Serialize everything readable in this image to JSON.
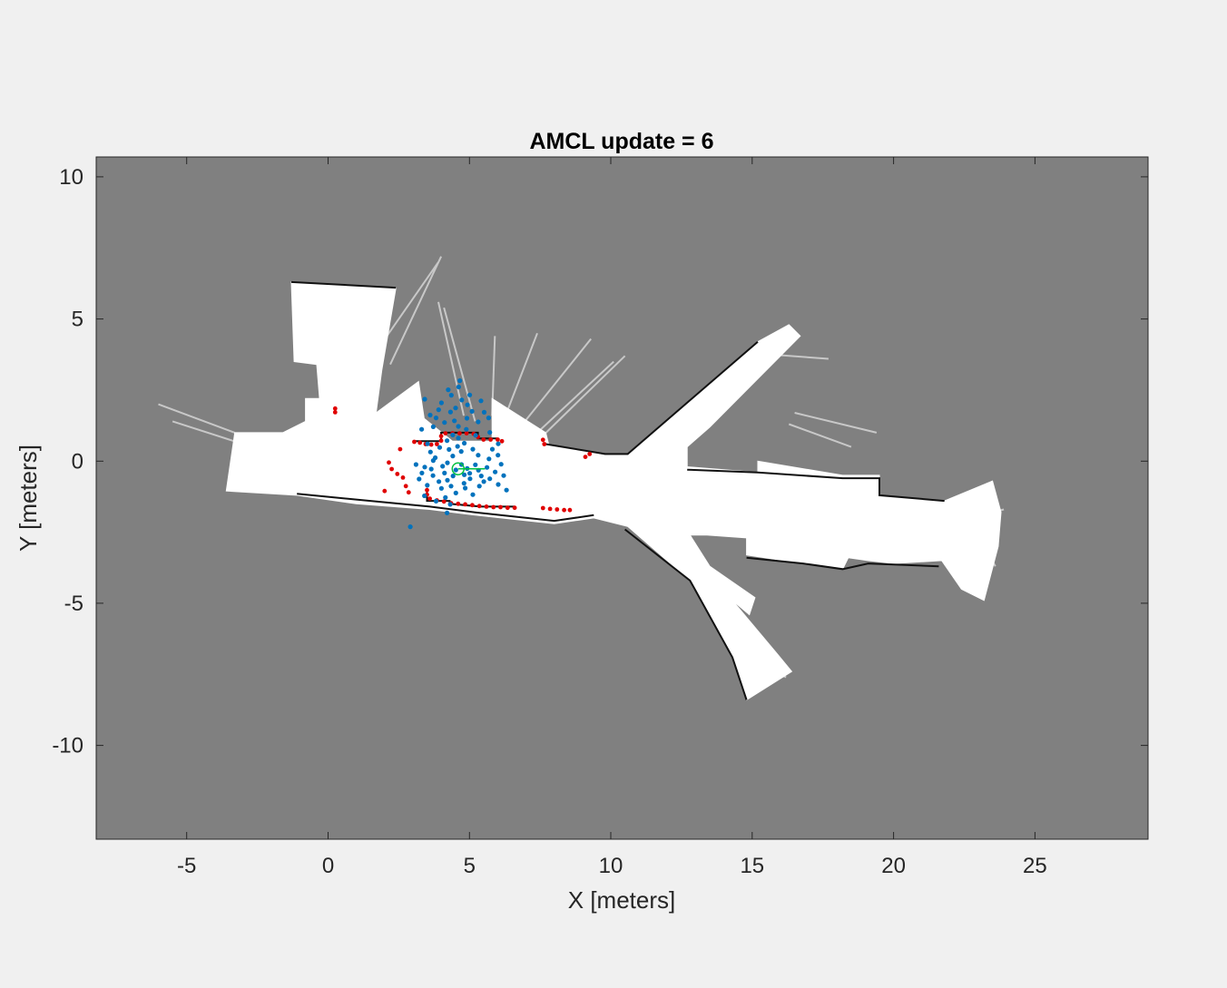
{
  "chart_data": {
    "type": "scatter",
    "title": "AMCL update = 6",
    "xlabel": "X [meters]",
    "ylabel": "Y [meters]",
    "xlim": [
      -8.2,
      29.0
    ],
    "ylim": [
      -13.3,
      10.7
    ],
    "xticks": [
      -5,
      0,
      5,
      10,
      15,
      20,
      25
    ],
    "yticks": [
      10,
      5,
      0,
      -5,
      -10
    ],
    "xtick_labels": [
      "-5",
      "0",
      "5",
      "10",
      "15",
      "20",
      "25"
    ],
    "ytick_labels": [
      "10",
      "5",
      "0",
      "-5",
      "-10"
    ],
    "grid": false,
    "legend": "none",
    "background": "occupancy-grid-map",
    "colors": {
      "unknown": "#808080",
      "free": "#ffffff",
      "occupied": "#111111",
      "particles": "#0072bd",
      "scan": "#e00000",
      "pose": "#00c040",
      "figure": "#f0f0f0"
    },
    "map_free_space": [
      [
        [
          -3.6,
          -1.05
        ],
        [
          -3.3,
          1.0
        ],
        [
          -1.6,
          1.0
        ],
        [
          -0.8,
          1.4
        ],
        [
          -0.8,
          2.2
        ],
        [
          -0.3,
          2.2
        ],
        [
          -0.4,
          3.4
        ],
        [
          -1.2,
          3.5
        ],
        [
          -1.3,
          6.3
        ],
        [
          2.4,
          6.1
        ],
        [
          1.9,
          3.2
        ],
        [
          1.7,
          1.7
        ],
        [
          3.2,
          2.8
        ],
        [
          3.4,
          1.5
        ],
        [
          4.4,
          0.7
        ],
        [
          5.8,
          0.7
        ],
        [
          5.8,
          2.2
        ],
        [
          7.7,
          1.0
        ],
        [
          7.8,
          0.6
        ],
        [
          9.8,
          0.2
        ],
        [
          10.6,
          0.2
        ],
        [
          15.2,
          4.2
        ],
        [
          16.3,
          4.8
        ],
        [
          16.7,
          4.4
        ],
        [
          13.5,
          1.2
        ],
        [
          12.7,
          0.5
        ],
        [
          12.7,
          -0.2
        ],
        [
          15.2,
          -0.4
        ],
        [
          15.2,
          0.0
        ],
        [
          18.2,
          -0.5
        ],
        [
          19.5,
          -0.5
        ],
        [
          19.5,
          -1.2
        ],
        [
          21.8,
          -1.4
        ],
        [
          23.5,
          -0.7
        ],
        [
          23.8,
          -1.8
        ],
        [
          23.7,
          -3.0
        ],
        [
          23.2,
          -4.9
        ],
        [
          22.4,
          -4.5
        ],
        [
          21.7,
          -3.5
        ],
        [
          20.0,
          -3.6
        ],
        [
          19.1,
          -3.5
        ],
        [
          18.4,
          -3.4
        ],
        [
          18.2,
          -3.8
        ],
        [
          16.8,
          -3.6
        ],
        [
          14.8,
          -3.3
        ],
        [
          14.8,
          -2.7
        ],
        [
          13.4,
          -2.6
        ],
        [
          12.8,
          -2.6
        ],
        [
          13.5,
          -3.7
        ],
        [
          15.1,
          -4.8
        ],
        [
          14.9,
          -5.4
        ],
        [
          14.3,
          -4.9
        ],
        [
          15.9,
          -6.8
        ],
        [
          16.4,
          -7.4
        ],
        [
          14.8,
          -8.4
        ],
        [
          14.3,
          -6.9
        ],
        [
          12.8,
          -4.2
        ],
        [
          10.6,
          -2.3
        ],
        [
          9.4,
          -2.0
        ],
        [
          8.0,
          -2.2
        ],
        [
          5.2,
          -1.9
        ],
        [
          3.6,
          -1.7
        ],
        [
          1.0,
          -1.5
        ],
        [
          -1.1,
          -1.2
        ],
        [
          -3.6,
          -1.05
        ]
      ]
    ],
    "map_walls": [
      [
        [
          3.0,
          0.7
        ],
        [
          4.0,
          0.7
        ],
        [
          4.0,
          1.0
        ],
        [
          5.3,
          1.0
        ],
        [
          5.3,
          0.8
        ],
        [
          6.0,
          0.8
        ]
      ],
      [
        [
          3.5,
          -1.0
        ],
        [
          3.5,
          -1.4
        ],
        [
          4.3,
          -1.4
        ],
        [
          4.3,
          -1.5
        ],
        [
          5.4,
          -1.6
        ],
        [
          6.6,
          -1.6
        ]
      ],
      [
        [
          -1.1,
          -1.15
        ],
        [
          1.0,
          -1.35
        ],
        [
          3.6,
          -1.6
        ],
        [
          5.2,
          -1.8
        ],
        [
          8.0,
          -2.1
        ],
        [
          9.4,
          -1.9
        ]
      ],
      [
        [
          12.7,
          -0.3
        ],
        [
          15.2,
          -0.4
        ],
        [
          18.2,
          -0.6
        ],
        [
          19.5,
          -0.6
        ],
        [
          19.5,
          -1.2
        ],
        [
          21.8,
          -1.4
        ]
      ],
      [
        [
          14.8,
          -3.4
        ],
        [
          16.8,
          -3.6
        ],
        [
          18.2,
          -3.8
        ],
        [
          19.1,
          -3.6
        ],
        [
          21.6,
          -3.7
        ]
      ],
      [
        [
          7.7,
          0.6
        ],
        [
          9.8,
          0.25
        ],
        [
          10.6,
          0.25
        ],
        [
          15.2,
          4.2
        ]
      ],
      [
        [
          10.5,
          -2.4
        ],
        [
          12.8,
          -4.2
        ],
        [
          14.3,
          -6.9
        ],
        [
          14.8,
          -8.4
        ]
      ],
      [
        [
          -1.3,
          6.3
        ],
        [
          2.4,
          6.1
        ]
      ]
    ],
    "map_rays": [
      [
        [
          -3.3,
          1.0
        ],
        [
          -6.0,
          2.0
        ]
      ],
      [
        [
          -3.0,
          0.6
        ],
        [
          -5.5,
          1.4
        ]
      ],
      [
        [
          1.8,
          4.0
        ],
        [
          3.9,
          7.0
        ]
      ],
      [
        [
          2.2,
          3.4
        ],
        [
          4.0,
          7.2
        ]
      ],
      [
        [
          4.8,
          1.6
        ],
        [
          3.9,
          5.6
        ]
      ],
      [
        [
          5.2,
          1.4
        ],
        [
          4.1,
          5.4
        ]
      ],
      [
        [
          5.8,
          1.6
        ],
        [
          5.9,
          4.4
        ]
      ],
      [
        [
          6.2,
          1.4
        ],
        [
          7.4,
          4.5
        ]
      ],
      [
        [
          6.8,
          1.2
        ],
        [
          9.3,
          4.3
        ]
      ],
      [
        [
          7.4,
          1.0
        ],
        [
          10.1,
          3.5
        ]
      ],
      [
        [
          7.6,
          0.9
        ],
        [
          10.5,
          3.7
        ]
      ],
      [
        [
          15.0,
          3.8
        ],
        [
          17.7,
          3.6
        ]
      ],
      [
        [
          15.0,
          3.2
        ],
        [
          16.3,
          4.7
        ]
      ],
      [
        [
          16.5,
          1.7
        ],
        [
          19.4,
          1.0
        ]
      ],
      [
        [
          16.3,
          1.3
        ],
        [
          18.5,
          0.5
        ]
      ],
      [
        [
          22.8,
          -2.0
        ],
        [
          23.9,
          -1.7
        ]
      ],
      [
        [
          22.7,
          -2.2
        ],
        [
          23.6,
          -3.7
        ]
      ],
      [
        [
          14.8,
          -7.0
        ],
        [
          16.2,
          -7.6
        ]
      ]
    ],
    "particles": [
      {
        "x": 4.51,
        "y": 1.87
      },
      {
        "x": 4.62,
        "y": 2.61
      },
      {
        "x": 4.47,
        "y": 1.42
      },
      {
        "x": 5.09,
        "y": 1.75
      },
      {
        "x": 4.73,
        "y": 2.15
      },
      {
        "x": 4.12,
        "y": 1.36
      },
      {
        "x": 4.41,
        "y": 0.92
      },
      {
        "x": 4.89,
        "y": 1.12
      },
      {
        "x": 3.61,
        "y": 1.62
      },
      {
        "x": 5.31,
        "y": 1.38
      },
      {
        "x": 4.66,
        "y": 2.83
      },
      {
        "x": 4.36,
        "y": 2.32
      },
      {
        "x": 3.42,
        "y": 2.18
      },
      {
        "x": 5.68,
        "y": 1.52
      },
      {
        "x": 4.28,
        "y": 0.41
      },
      {
        "x": 4.82,
        "y": 0.63
      },
      {
        "x": 5.31,
        "y": 0.21
      },
      {
        "x": 3.79,
        "y": 0.12
      },
      {
        "x": 4.05,
        "y": -0.18
      },
      {
        "x": 4.52,
        "y": -0.31
      },
      {
        "x": 5.01,
        "y": -0.43
      },
      {
        "x": 5.42,
        "y": -0.52
      },
      {
        "x": 5.91,
        "y": -0.38
      },
      {
        "x": 3.42,
        "y": -0.21
      },
      {
        "x": 3.71,
        "y": -0.51
      },
      {
        "x": 4.22,
        "y": -0.67
      },
      {
        "x": 4.81,
        "y": -0.78
      },
      {
        "x": 5.21,
        "y": -0.13
      },
      {
        "x": 5.69,
        "y": 0.08
      },
      {
        "x": 6.12,
        "y": -0.11
      },
      {
        "x": 6.21,
        "y": -0.51
      },
      {
        "x": 3.51,
        "y": -0.85
      },
      {
        "x": 4.01,
        "y": -0.96
      },
      {
        "x": 4.52,
        "y": -1.12
      },
      {
        "x": 5.12,
        "y": -1.18
      },
      {
        "x": 3.82,
        "y": -1.41
      },
      {
        "x": 4.32,
        "y": -1.52
      },
      {
        "x": 3.11,
        "y": -0.12
      },
      {
        "x": 3.22,
        "y": -0.63
      },
      {
        "x": 4.92,
        "y": -0.26
      },
      {
        "x": 4.41,
        "y": 0.18
      },
      {
        "x": 4.71,
        "y": 0.34
      },
      {
        "x": 5.51,
        "y": -0.72
      },
      {
        "x": 3.62,
        "y": 0.32
      },
      {
        "x": 4.21,
        "y": 0.72
      },
      {
        "x": 5.81,
        "y": 0.42
      },
      {
        "x": 6.01,
        "y": 0.21
      },
      {
        "x": 3.31,
        "y": 1.12
      },
      {
        "x": 3.72,
        "y": 1.21
      },
      {
        "x": 5.01,
        "y": 2.33
      },
      {
        "x": 4.91,
        "y": 1.51
      },
      {
        "x": 4.33,
        "y": 1.73
      },
      {
        "x": 4.01,
        "y": 2.05
      },
      {
        "x": 5.41,
        "y": 2.12
      },
      {
        "x": 3.91,
        "y": 1.81
      },
      {
        "x": 4.61,
        "y": 0.81
      },
      {
        "x": 5.22,
        "y": 0.91
      },
      {
        "x": 3.52,
        "y": 0.61
      },
      {
        "x": 6.02,
        "y": 0.61
      },
      {
        "x": 5.72,
        "y": 1.01
      },
      {
        "x": 4.12,
        "y": -0.42
      },
      {
        "x": 4.42,
        "y": -0.52
      },
      {
        "x": 4.72,
        "y": -0.12
      },
      {
        "x": 5.32,
        "y": -0.32
      },
      {
        "x": 3.92,
        "y": -0.72
      },
      {
        "x": 5.02,
        "y": -0.62
      },
      {
        "x": 5.62,
        "y": -0.22
      },
      {
        "x": 3.32,
        "y": -0.42
      },
      {
        "x": 6.02,
        "y": -0.82
      },
      {
        "x": 4.22,
        "y": -0.06
      },
      {
        "x": 3.72,
        "y": 0.02
      },
      {
        "x": 4.82,
        "y": -0.48
      },
      {
        "x": 5.72,
        "y": -0.62
      },
      {
        "x": 2.91,
        "y": -2.31
      },
      {
        "x": 4.21,
        "y": -1.82
      },
      {
        "x": 3.41,
        "y": -1.22
      },
      {
        "x": 6.31,
        "y": -1.02
      },
      {
        "x": 4.61,
        "y": 1.22
      },
      {
        "x": 5.52,
        "y": 1.72
      },
      {
        "x": 3.82,
        "y": 1.52
      },
      {
        "x": 4.93,
        "y": 1.98
      },
      {
        "x": 4.25,
        "y": 2.51
      },
      {
        "x": 4.58,
        "y": 0.52
      },
      {
        "x": 5.12,
        "y": 0.42
      },
      {
        "x": 3.95,
        "y": 0.48
      },
      {
        "x": 4.35,
        "y": -0.88
      },
      {
        "x": 4.85,
        "y": -0.95
      },
      {
        "x": 5.35,
        "y": -0.88
      },
      {
        "x": 3.65,
        "y": -0.28
      },
      {
        "x": 4.15,
        "y": -1.28
      }
    ],
    "scan_points": [
      {
        "x": 3.05,
        "y": 0.68
      },
      {
        "x": 3.25,
        "y": 0.65
      },
      {
        "x": 3.45,
        "y": 0.6
      },
      {
        "x": 3.65,
        "y": 0.58
      },
      {
        "x": 3.85,
        "y": 0.6
      },
      {
        "x": 4.0,
        "y": 0.72
      },
      {
        "x": 4.0,
        "y": 0.88
      },
      {
        "x": 4.15,
        "y": 0.98
      },
      {
        "x": 4.4,
        "y": 0.98
      },
      {
        "x": 4.65,
        "y": 0.98
      },
      {
        "x": 4.9,
        "y": 0.98
      },
      {
        "x": 5.15,
        "y": 0.96
      },
      {
        "x": 5.3,
        "y": 0.85
      },
      {
        "x": 5.5,
        "y": 0.76
      },
      {
        "x": 5.75,
        "y": 0.76
      },
      {
        "x": 6.0,
        "y": 0.76
      },
      {
        "x": 6.15,
        "y": 0.7
      },
      {
        "x": 3.5,
        "y": -1.02
      },
      {
        "x": 3.5,
        "y": -1.18
      },
      {
        "x": 3.6,
        "y": -1.32
      },
      {
        "x": 3.85,
        "y": -1.38
      },
      {
        "x": 4.1,
        "y": -1.42
      },
      {
        "x": 4.35,
        "y": -1.48
      },
      {
        "x": 4.6,
        "y": -1.5
      },
      {
        "x": 4.85,
        "y": -1.52
      },
      {
        "x": 5.1,
        "y": -1.55
      },
      {
        "x": 5.35,
        "y": -1.58
      },
      {
        "x": 5.6,
        "y": -1.6
      },
      {
        "x": 5.85,
        "y": -1.62
      },
      {
        "x": 6.1,
        "y": -1.62
      },
      {
        "x": 6.35,
        "y": -1.64
      },
      {
        "x": 6.6,
        "y": -1.64
      },
      {
        "x": 0.25,
        "y": 1.85
      },
      {
        "x": 0.25,
        "y": 1.72
      },
      {
        "x": 2.55,
        "y": 0.42
      },
      {
        "x": 2.15,
        "y": -0.05
      },
      {
        "x": 2.25,
        "y": -0.28
      },
      {
        "x": 2.45,
        "y": -0.45
      },
      {
        "x": 2.65,
        "y": -0.58
      },
      {
        "x": 2.75,
        "y": -0.88
      },
      {
        "x": 2.85,
        "y": -1.1
      },
      {
        "x": 2.0,
        "y": -1.05
      },
      {
        "x": 7.6,
        "y": 0.75
      },
      {
        "x": 7.65,
        "y": 0.6
      },
      {
        "x": 7.6,
        "y": -1.65
      },
      {
        "x": 7.85,
        "y": -1.68
      },
      {
        "x": 8.1,
        "y": -1.7
      },
      {
        "x": 8.35,
        "y": -1.72
      },
      {
        "x": 8.55,
        "y": -1.72
      },
      {
        "x": 9.25,
        "y": 0.25
      },
      {
        "x": 9.1,
        "y": 0.15
      }
    ],
    "pose": {
      "x": 4.6,
      "y": -0.27,
      "theta_deg": 0,
      "arrow_length": 0.95
    }
  }
}
